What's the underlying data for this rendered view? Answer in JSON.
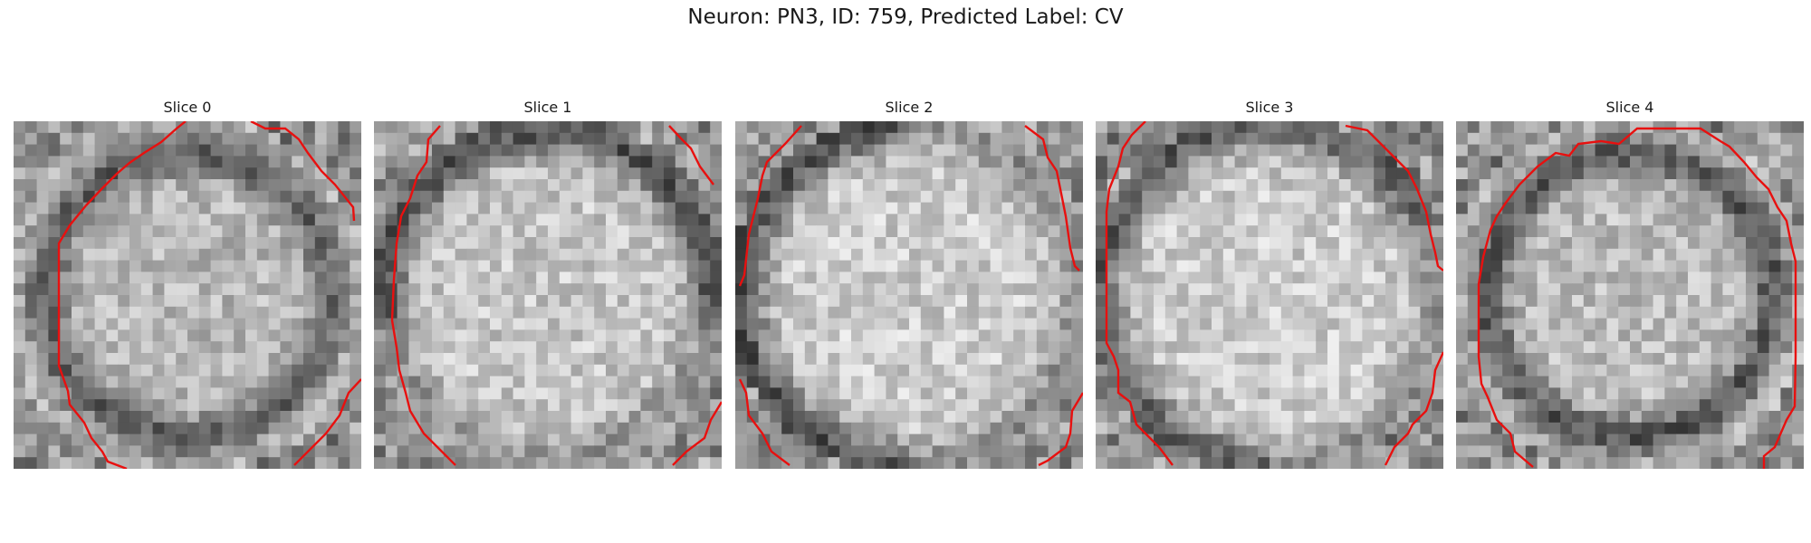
{
  "figure": {
    "title": "Neuron: PN3, ID: 759, Predicted Label: CV"
  },
  "panels": [
    {
      "label": "Slice 0",
      "seed": 11,
      "membrane": "ring",
      "center_brightness": 0.72,
      "edge_darkness": 0.35
    },
    {
      "label": "Slice 1",
      "seed": 23,
      "membrane": "top",
      "center_brightness": 0.78,
      "edge_darkness": 0.45
    },
    {
      "label": "Slice 2",
      "seed": 37,
      "membrane": "left",
      "center_brightness": 0.8,
      "edge_darkness": 0.5
    },
    {
      "label": "Slice 3",
      "seed": 51,
      "membrane": "top-left",
      "center_brightness": 0.8,
      "edge_darkness": 0.45
    },
    {
      "label": "Slice 4",
      "seed": 67,
      "membrane": "ring-full",
      "center_brightness": 0.74,
      "edge_darkness": 0.4
    }
  ],
  "contour_color": "#e8100f",
  "grid_size": 30
}
